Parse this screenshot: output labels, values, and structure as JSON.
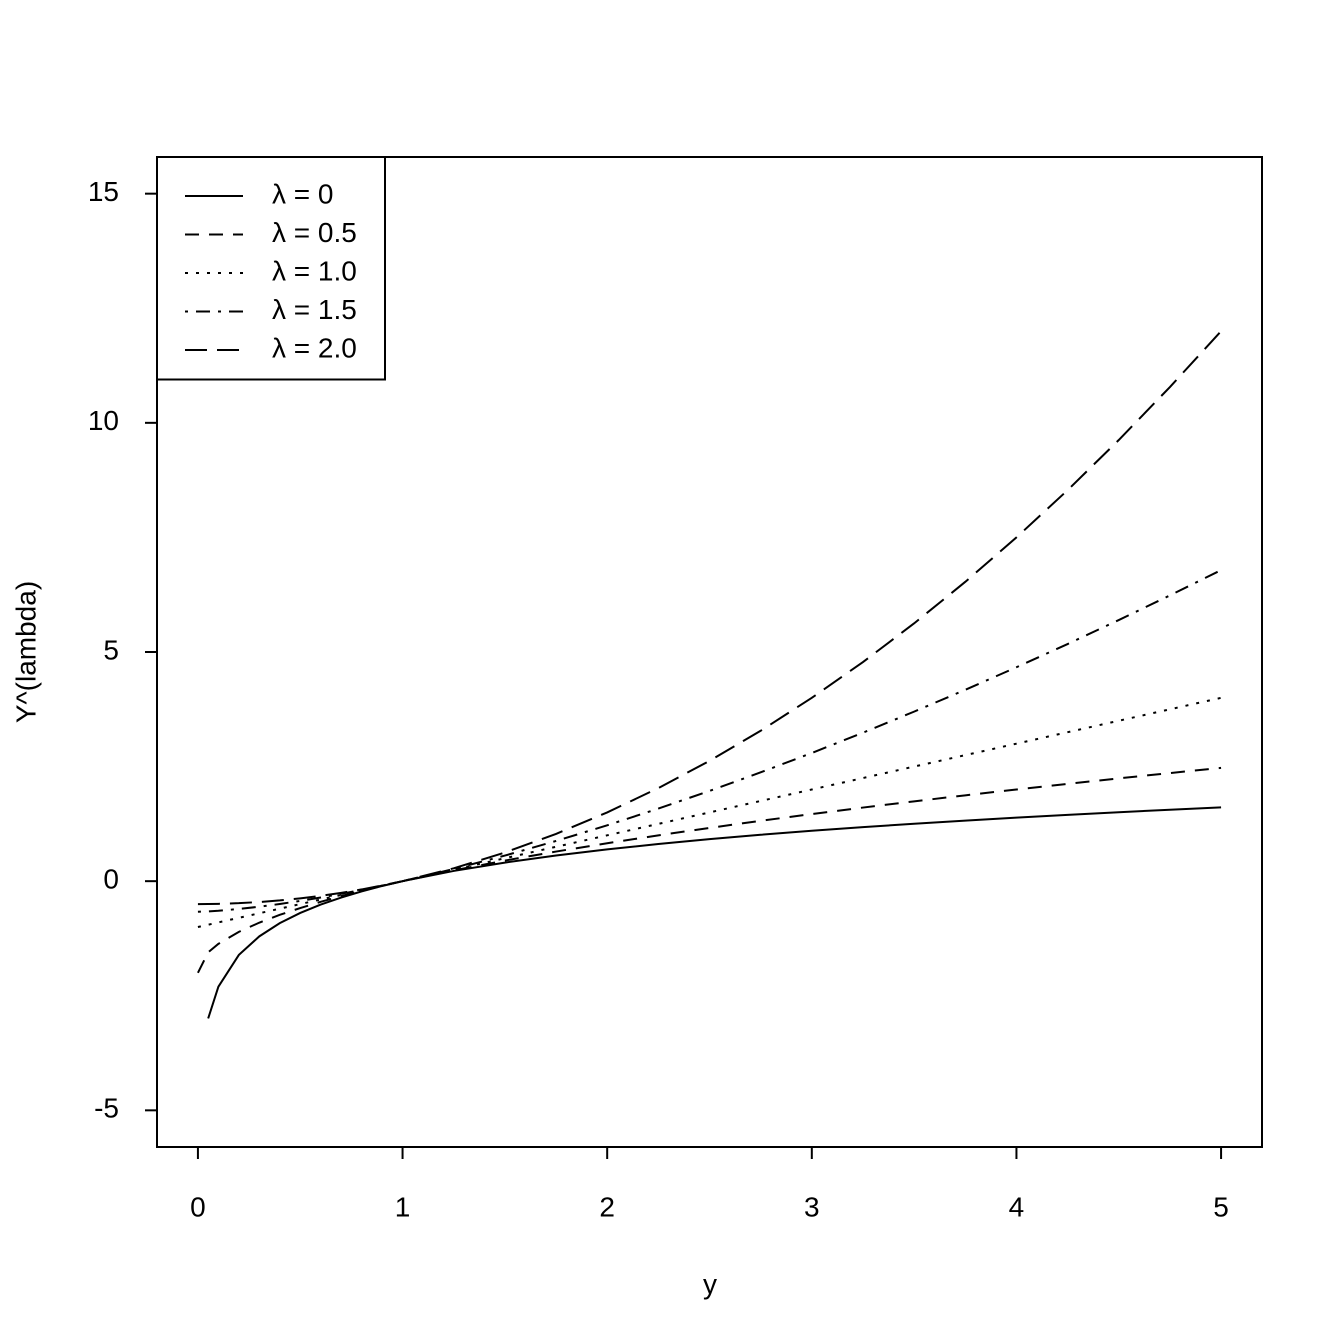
{
  "chart_data": {
    "type": "line",
    "xlabel": "y",
    "ylabel": "Y^(lambda)",
    "x": [
      0,
      0.05,
      0.1,
      0.2,
      0.3,
      0.4,
      0.5,
      0.6,
      0.7,
      0.8,
      0.9,
      1,
      1.25,
      1.5,
      1.75,
      2,
      2.25,
      2.5,
      2.75,
      3,
      3.25,
      3.5,
      3.75,
      4,
      4.25,
      4.5,
      4.75,
      5
    ],
    "series": [
      {
        "name": "λ = 0",
        "color": "#000000",
        "linestyle": "solid",
        "values": [
          null,
          -2.996,
          -2.303,
          -1.609,
          -1.204,
          -0.916,
          -0.693,
          -0.511,
          -0.357,
          -0.223,
          -0.105,
          0,
          0.223,
          0.405,
          0.56,
          0.693,
          0.811,
          0.916,
          1.012,
          1.099,
          1.179,
          1.253,
          1.322,
          1.386,
          1.447,
          1.504,
          1.558,
          1.609
        ]
      },
      {
        "name": "λ = 0.5",
        "color": "#000000",
        "linestyle": "dashed",
        "values": [
          -2,
          -1.553,
          -1.368,
          -1.106,
          -0.905,
          -0.735,
          -0.586,
          -0.451,
          -0.327,
          -0.211,
          -0.103,
          0,
          0.236,
          0.449,
          0.646,
          0.828,
          1.0,
          1.162,
          1.317,
          1.464,
          1.606,
          1.742,
          1.873,
          2,
          2.123,
          2.243,
          2.359,
          2.472
        ]
      },
      {
        "name": "λ = 1.0",
        "color": "#000000",
        "linestyle": "dotted",
        "values": [
          -1,
          -0.95,
          -0.9,
          -0.8,
          -0.7,
          -0.6,
          -0.5,
          -0.4,
          -0.3,
          -0.2,
          -0.1,
          0,
          0.25,
          0.5,
          0.75,
          1,
          1.25,
          1.5,
          1.75,
          2,
          2.25,
          2.5,
          2.75,
          3,
          3.25,
          3.5,
          3.75,
          4
        ]
      },
      {
        "name": "λ = 1.5",
        "color": "#000000",
        "linestyle": "dotdash",
        "values": [
          -0.667,
          -0.659,
          -0.646,
          -0.607,
          -0.557,
          -0.498,
          -0.431,
          -0.357,
          -0.276,
          -0.19,
          -0.097,
          0,
          0.265,
          0.558,
          0.877,
          1.219,
          1.583,
          1.969,
          2.374,
          2.797,
          3.239,
          3.699,
          4.175,
          4.667,
          5.174,
          5.697,
          6.235,
          6.787
        ]
      },
      {
        "name": "λ = 2.0",
        "color": "#000000",
        "linestyle": "longdash",
        "values": [
          -0.5,
          -0.499,
          -0.495,
          -0.48,
          -0.455,
          -0.42,
          -0.375,
          -0.32,
          -0.255,
          -0.18,
          -0.095,
          0,
          0.281,
          0.625,
          1.031,
          1.5,
          2.031,
          2.625,
          3.281,
          4,
          4.781,
          5.625,
          6.531,
          7.5,
          8.531,
          9.625,
          10.781,
          12
        ]
      }
    ],
    "xlim": [
      -0.2,
      5.2
    ],
    "xticks": [
      0,
      1,
      2,
      3,
      4,
      5
    ],
    "ylim": [
      -5.8,
      15.8
    ],
    "yticks": [
      -5,
      0,
      5,
      10,
      15
    ],
    "legend": "top-left"
  }
}
